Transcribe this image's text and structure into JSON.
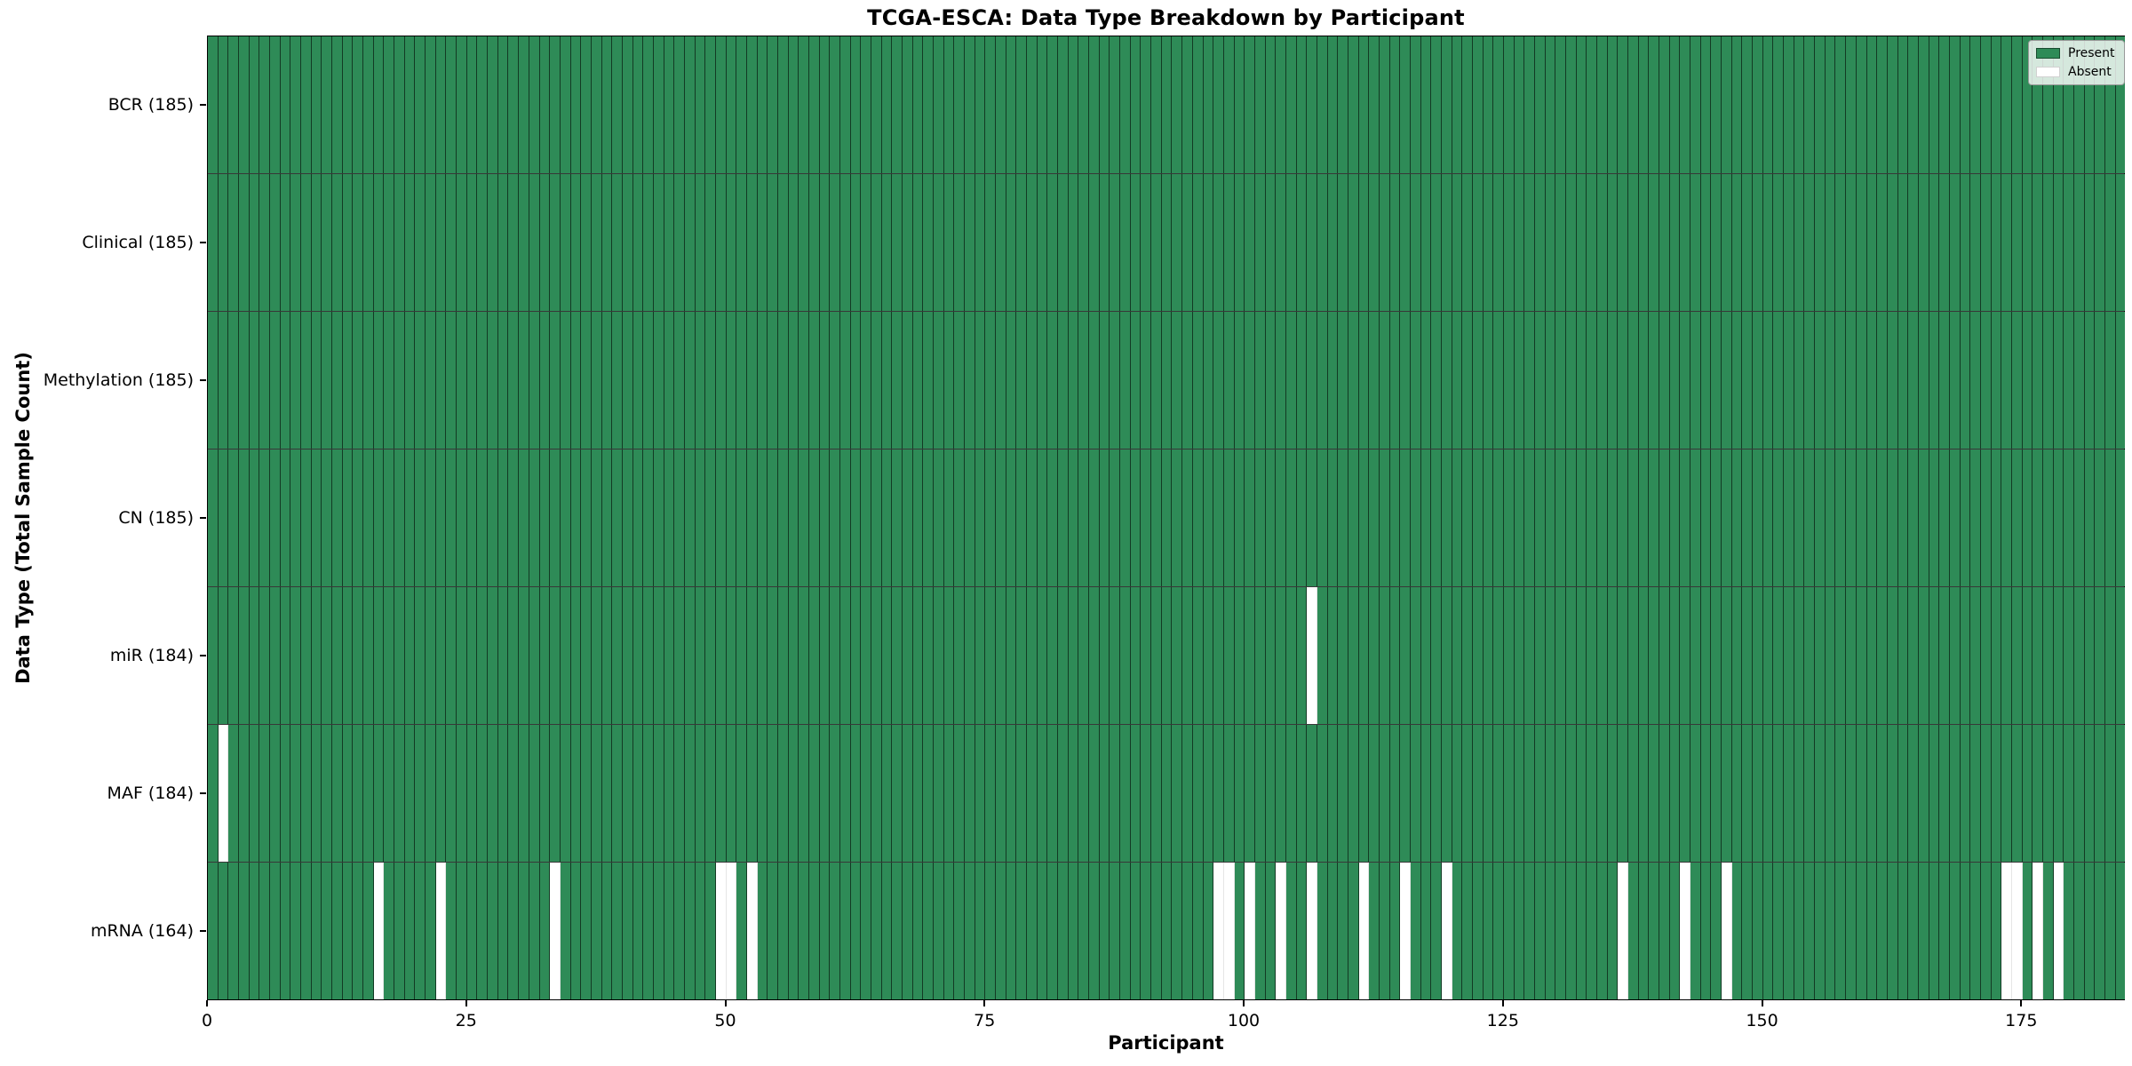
{
  "title": "TCGA-ESCA: Data Type Breakdown by Participant",
  "axes": {
    "x_label": "Participant",
    "y_label": "Data Type (Total Sample Count)",
    "x_tick_labels": [
      "0",
      "25",
      "50",
      "75",
      "100",
      "125",
      "150",
      "175"
    ]
  },
  "legend": {
    "items": [
      {
        "label": "Present",
        "color": "#2e8b57"
      },
      {
        "label": "Absent",
        "color": "#ffffff"
      }
    ],
    "position": "upper right"
  },
  "chart_data": {
    "type": "heatmap",
    "title": "TCGA-ESCA: Data Type Breakdown by Participant",
    "xlabel": "Participant",
    "ylabel": "Data Type (Total Sample Count)",
    "x_range": [
      0,
      185
    ],
    "n_participants": 185,
    "x_ticks": [
      0,
      25,
      50,
      75,
      100,
      125,
      150,
      175
    ],
    "grid": "cell-borders",
    "legend_position": "upper right",
    "colors": {
      "present": "#2e8b57",
      "absent": "#ffffff",
      "cell_edge": "rgba(0,0,0,0.58)"
    },
    "rows": [
      {
        "name": "BCR",
        "label": "BCR (185)",
        "total": 185,
        "absent_participants": []
      },
      {
        "name": "Clinical",
        "label": "Clinical (185)",
        "total": 185,
        "absent_participants": []
      },
      {
        "name": "Methylation",
        "label": "Methylation (185)",
        "total": 185,
        "absent_participants": []
      },
      {
        "name": "CN",
        "label": "CN (185)",
        "total": 185,
        "absent_participants": []
      },
      {
        "name": "miR",
        "label": "miR (184)",
        "total": 184,
        "absent_participants": [
          106
        ]
      },
      {
        "name": "MAF",
        "label": "MAF (184)",
        "total": 184,
        "absent_participants": [
          1
        ]
      },
      {
        "name": "mRNA",
        "label": "mRNA (164)",
        "total": 164,
        "absent_participants": [
          16,
          22,
          33,
          49,
          50,
          52,
          97,
          98,
          100,
          103,
          106,
          111,
          115,
          119,
          136,
          142,
          146,
          173,
          174,
          176,
          178
        ]
      }
    ]
  }
}
